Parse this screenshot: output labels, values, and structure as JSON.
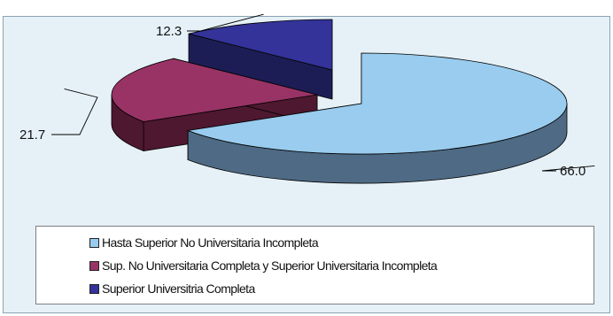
{
  "chart_data": {
    "type": "pie",
    "title": "",
    "slices": [
      {
        "label": "Hasta Superior No Universitaria Incompleta",
        "value": 66.0,
        "value_label": "66.0",
        "color": "#99ccee",
        "side_color": "#4f6a84"
      },
      {
        "label": "Sup. No Universitaria Completa y Superior Universitaria Incompleta",
        "value": 21.7,
        "value_label": "21.7",
        "color": "#993366",
        "side_color": "#4e1830"
      },
      {
        "label": "Superior Universitria Completa",
        "value": 12.3,
        "value_label": "12.3",
        "color": "#333399",
        "side_color": "#1d1d55"
      }
    ],
    "legend_position": "bottom",
    "three_d": true
  }
}
